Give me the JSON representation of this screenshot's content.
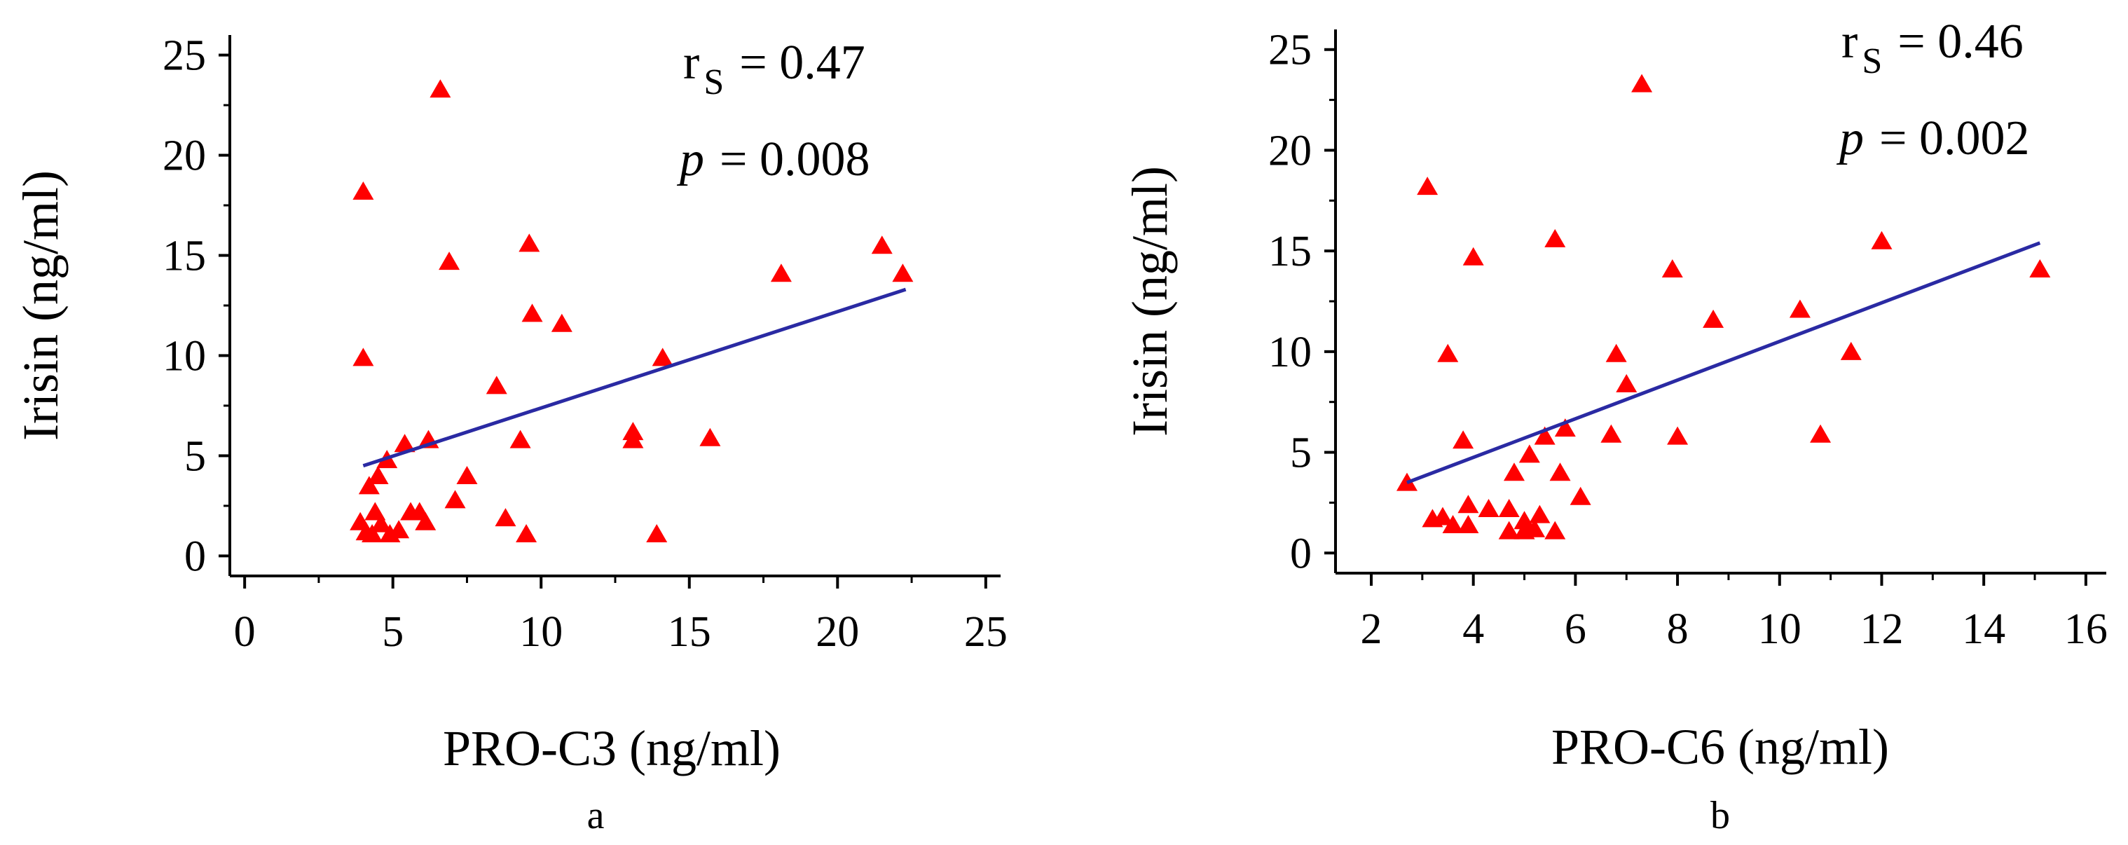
{
  "colors": {
    "points": "#ff0000",
    "fit_line": "#2a2aa3",
    "axis": "#000000"
  },
  "chart_data": [
    {
      "type": "scatter",
      "panel_label": "a",
      "xlabel": "PRO-C3 (ng/ml)",
      "ylabel": "Irisin (ng/ml)",
      "xlim": [
        -0.5,
        25.5
      ],
      "ylim": [
        -1,
        26
      ],
      "xticks": [
        0,
        5,
        10,
        15,
        20,
        25
      ],
      "yticks": [
        0,
        5,
        10,
        15,
        20,
        25
      ],
      "stat_rs_label": "r",
      "stat_rs_sub": "S",
      "stat_rs_value": "= 0.47",
      "stat_p_label": "p",
      "stat_p_value": "= 0.008",
      "marker": "triangle",
      "points": [
        [
          6.6,
          23.3
        ],
        [
          4.0,
          18.2
        ],
        [
          9.6,
          15.6
        ],
        [
          6.9,
          14.7
        ],
        [
          21.5,
          15.5
        ],
        [
          22.2,
          14.1
        ],
        [
          18.1,
          14.1
        ],
        [
          9.7,
          12.1
        ],
        [
          10.7,
          11.6
        ],
        [
          4.0,
          9.9
        ],
        [
          14.1,
          9.9
        ],
        [
          8.5,
          8.5
        ],
        [
          13.1,
          6.2
        ],
        [
          13.1,
          5.8
        ],
        [
          15.7,
          5.9
        ],
        [
          9.3,
          5.8
        ],
        [
          6.2,
          5.8
        ],
        [
          5.4,
          5.6
        ],
        [
          4.8,
          4.8
        ],
        [
          7.5,
          4.0
        ],
        [
          4.5,
          4.0
        ],
        [
          4.2,
          3.5
        ],
        [
          7.1,
          2.8
        ],
        [
          5.6,
          2.2
        ],
        [
          4.4,
          2.2
        ],
        [
          5.9,
          2.2
        ],
        [
          8.8,
          1.9
        ],
        [
          3.9,
          1.7
        ],
        [
          6.1,
          1.7
        ],
        [
          4.6,
          1.6
        ],
        [
          4.1,
          1.2
        ],
        [
          5.2,
          1.3
        ],
        [
          4.3,
          1.1
        ],
        [
          9.5,
          1.1
        ],
        [
          13.9,
          1.1
        ],
        [
          4.9,
          1.1
        ]
      ],
      "fit_line": {
        "x": [
          4.0,
          22.3
        ],
        "y": [
          4.5,
          13.3
        ]
      }
    },
    {
      "type": "scatter",
      "panel_label": "b",
      "xlabel": "PRO-C6 (ng/ml)",
      "ylabel": "Irisin (ng/ml)",
      "xlim": [
        1.3,
        16.4
      ],
      "ylim": [
        -1,
        26
      ],
      "xticks": [
        2,
        4,
        6,
        8,
        10,
        12,
        14,
        16
      ],
      "yticks": [
        0,
        5,
        10,
        15,
        20,
        25
      ],
      "stat_rs_label": "r",
      "stat_rs_sub": "S",
      "stat_rs_value": "= 0.46",
      "stat_p_label": "p",
      "stat_p_value": "= 0.002",
      "marker": "triangle",
      "points": [
        [
          7.3,
          23.3
        ],
        [
          3.1,
          18.2
        ],
        [
          5.6,
          15.6
        ],
        [
          4.0,
          14.7
        ],
        [
          12.0,
          15.5
        ],
        [
          15.1,
          14.1
        ],
        [
          7.9,
          14.1
        ],
        [
          10.4,
          12.1
        ],
        [
          8.7,
          11.6
        ],
        [
          3.5,
          9.9
        ],
        [
          6.8,
          9.9
        ],
        [
          11.4,
          10.0
        ],
        [
          7.0,
          8.4
        ],
        [
          5.8,
          6.2
        ],
        [
          5.4,
          5.8
        ],
        [
          6.7,
          5.9
        ],
        [
          8.0,
          5.8
        ],
        [
          10.8,
          5.9
        ],
        [
          3.8,
          5.6
        ],
        [
          5.1,
          4.9
        ],
        [
          4.8,
          4.0
        ],
        [
          5.7,
          4.0
        ],
        [
          6.1,
          2.8
        ],
        [
          2.7,
          3.5
        ],
        [
          3.9,
          2.4
        ],
        [
          4.3,
          2.2
        ],
        [
          4.7,
          2.2
        ],
        [
          3.2,
          1.7
        ],
        [
          3.4,
          1.8
        ],
        [
          5.3,
          1.9
        ],
        [
          5.0,
          1.6
        ],
        [
          3.6,
          1.4
        ],
        [
          3.9,
          1.4
        ],
        [
          4.7,
          1.1
        ],
        [
          5.0,
          1.1
        ],
        [
          5.2,
          1.2
        ],
        [
          5.6,
          1.1
        ]
      ],
      "fit_line": {
        "x": [
          2.7,
          15.1
        ],
        "y": [
          3.5,
          15.4
        ]
      }
    }
  ]
}
